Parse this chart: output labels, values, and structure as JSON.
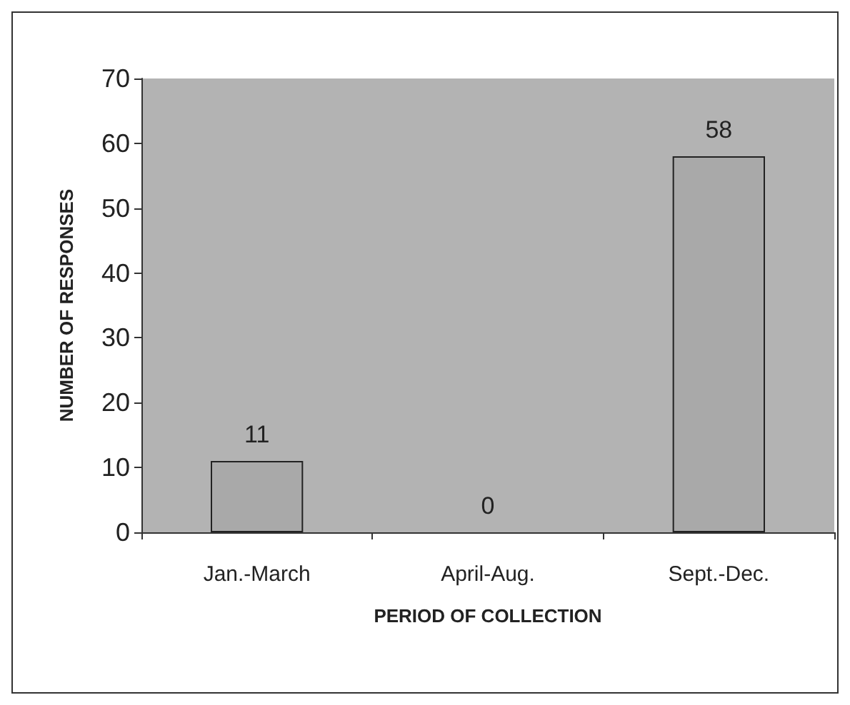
{
  "chart_data": {
    "type": "bar",
    "xlabel": "PERIOD OF COLLECTION",
    "ylabel": "NUMBER OF RESPONSES",
    "categories": [
      "Jan.-March",
      "April-Aug.",
      "Sept.-Dec."
    ],
    "values": [
      11,
      0,
      58
    ],
    "color": "#a9a9a9",
    "ylim": [
      0,
      70
    ],
    "yticks": [
      0,
      10,
      20,
      30,
      40,
      50,
      60,
      70
    ],
    "grid": false,
    "data_labels": true
  }
}
